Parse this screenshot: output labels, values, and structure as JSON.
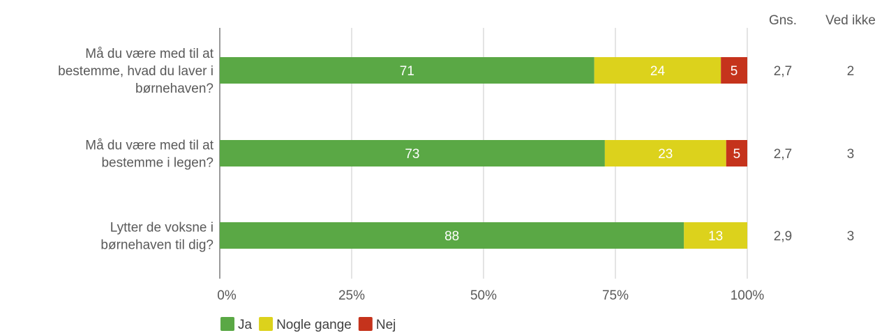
{
  "chart_data": {
    "type": "bar",
    "orientation": "horizontal",
    "stacked": true,
    "categories": [
      [
        "Må du være med til at",
        "bestemme, hvad du laver i",
        "børnehaven?"
      ],
      [
        "Må du være med til at",
        "bestemme i legen?"
      ],
      [
        "Lytter de voksne i",
        "børnehaven til dig?"
      ]
    ],
    "series": [
      {
        "name": "Ja",
        "color": "#5aa845",
        "values": [
          71,
          73,
          88
        ]
      },
      {
        "name": "Nogle gange",
        "color": "#dcd21c",
        "values": [
          24,
          23,
          13
        ]
      },
      {
        "name": "Nej",
        "color": "#c5331c",
        "values": [
          5,
          5,
          0
        ]
      }
    ],
    "xlim": [
      0,
      100
    ],
    "xticks": [
      "0%",
      "25%",
      "50%",
      "75%",
      "100%"
    ],
    "grid": true,
    "legend_position": "bottom",
    "extra_columns": [
      {
        "header": "Gns.",
        "values": [
          "2,7",
          "2,7",
          "2,9"
        ]
      },
      {
        "header": "Ved ikke",
        "values": [
          "2",
          "3",
          "3"
        ]
      }
    ]
  }
}
